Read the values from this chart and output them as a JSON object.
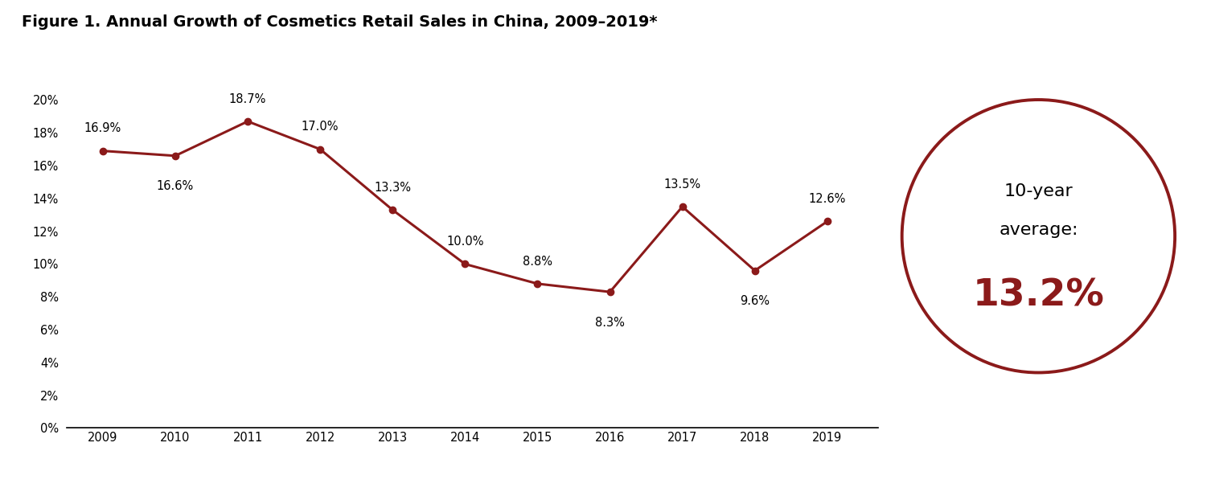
{
  "title": "Figure 1. Annual Growth of Cosmetics Retail Sales in China, 2009–2019*",
  "years": [
    2009,
    2010,
    2011,
    2012,
    2013,
    2014,
    2015,
    2016,
    2017,
    2018,
    2019
  ],
  "values": [
    16.9,
    16.6,
    18.7,
    17.0,
    13.3,
    10.0,
    8.8,
    8.3,
    13.5,
    9.6,
    12.6
  ],
  "labels": [
    "16.9%",
    "16.6%",
    "18.7%",
    "17.0%",
    "13.3%",
    "10.0%",
    "8.8%",
    "8.3%",
    "13.5%",
    "9.6%",
    "12.6%"
  ],
  "line_color": "#8B1A1A",
  "marker_color": "#8B1A1A",
  "label_offsets_y": [
    1.0,
    -1.5,
    1.0,
    1.0,
    1.0,
    1.0,
    1.0,
    -1.5,
    1.0,
    -1.5,
    1.0
  ],
  "ylim": [
    0,
    21
  ],
  "yticks": [
    0,
    2,
    4,
    6,
    8,
    10,
    12,
    14,
    16,
    18,
    20
  ],
  "ytick_labels": [
    "0%",
    "2%",
    "4%",
    "6%",
    "8%",
    "10%",
    "12%",
    "14%",
    "16%",
    "18%",
    "20%"
  ],
  "avg_text_line1": "10-year",
  "avg_text_line2": "average:",
  "avg_value": "13.2%",
  "avg_color": "#8B1A1A",
  "circle_color": "#8B1A1A",
  "background_color": "#ffffff",
  "title_fontsize": 14,
  "label_fontsize": 10.5,
  "axis_fontsize": 10.5,
  "avg_text_fontsize": 16,
  "avg_value_fontsize": 34
}
